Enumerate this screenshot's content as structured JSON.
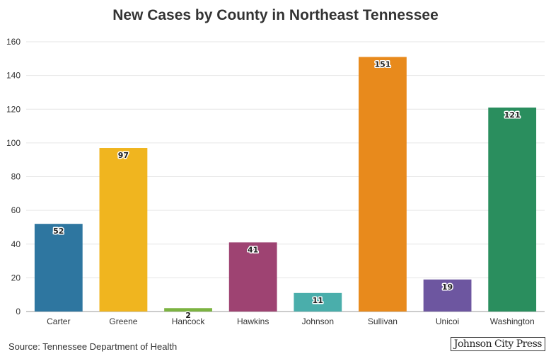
{
  "chart_data": {
    "type": "bar",
    "title": "New Cases by County in Northeast Tennessee",
    "categories": [
      "Carter",
      "Greene",
      "Hancock",
      "Hawkins",
      "Johnson",
      "Sullivan",
      "Unicoi",
      "Washington"
    ],
    "values": [
      52,
      97,
      2,
      41,
      11,
      151,
      19,
      121
    ],
    "colors": [
      "#2e76a0",
      "#f0b51f",
      "#7cb342",
      "#9e4372",
      "#4aaeab",
      "#e88a1c",
      "#6d56a0",
      "#2a8e5e"
    ],
    "xlabel": "",
    "ylabel": "",
    "ylim": [
      0,
      160
    ],
    "yticks": [
      0,
      20,
      40,
      60,
      80,
      100,
      120,
      140,
      160
    ],
    "grid": true,
    "legend": "none"
  },
  "footer": {
    "source": "Source: Tennessee Department of Health",
    "logo": "Johnson City Press"
  }
}
